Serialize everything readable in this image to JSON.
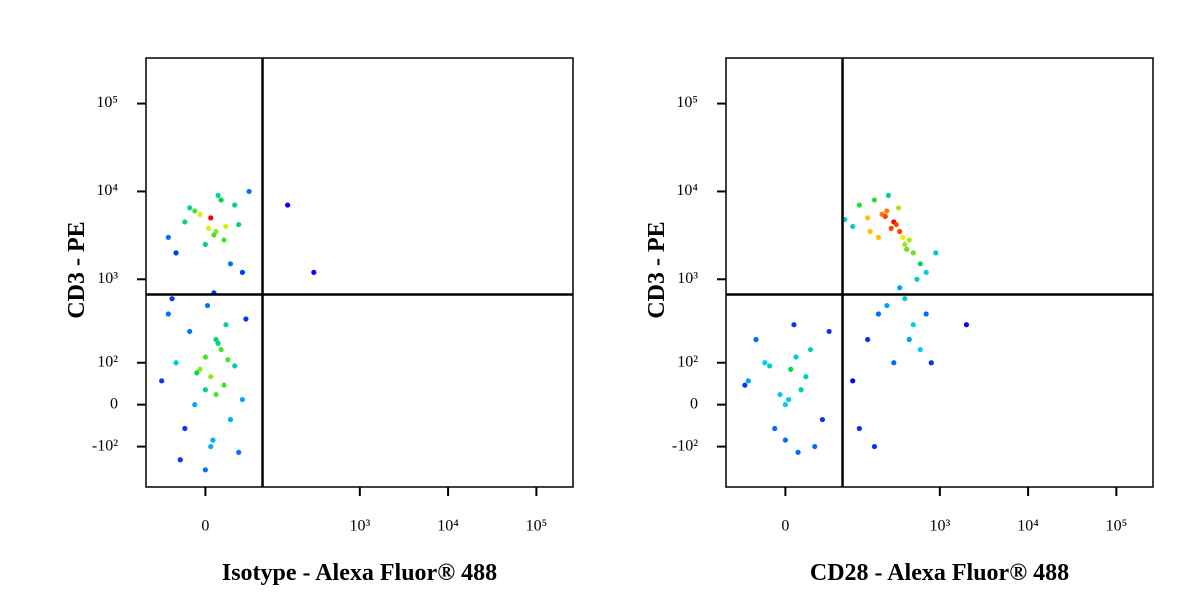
{
  "chart_data": [
    {
      "type": "scatter",
      "x_label": "Isotype - Alexa Fluor® 488",
      "y_label": "CD3 - PE",
      "scale": "biexponential",
      "xlim": [
        -80,
        260000
      ],
      "ylim": [
        -320,
        330000
      ],
      "xticks": [
        0,
        {
          "value": 1000,
          "label": "10³"
        },
        {
          "value": 10000,
          "label": "10⁴"
        },
        {
          "value": 100000,
          "label": "10⁵"
        }
      ],
      "yticks": [
        {
          "value": -100,
          "label": "-10²"
        },
        0,
        {
          "value": 100,
          "label": "10²"
        },
        {
          "value": 1000,
          "label": "10³"
        },
        {
          "value": 10000,
          "label": "10⁴"
        },
        {
          "value": 100000,
          "label": "10⁵"
        }
      ],
      "gate": {
        "x": 75,
        "y": 670
      },
      "x": [
        -40,
        -20,
        -10,
        0,
        5,
        10,
        15,
        20,
        25,
        30,
        -30,
        -5,
        8,
        12,
        35,
        40,
        -15,
        3,
        18,
        50,
        -50,
        -30,
        -20,
        -10,
        -5,
        0,
        0,
        5,
        5,
        10,
        10,
        15,
        20,
        25,
        30,
        40,
        -40,
        -25,
        -15,
        -8,
        2,
        7,
        12,
        18,
        22,
        35,
        45,
        -35,
        0,
        8,
        150,
        300
      ],
      "y": [
        3000,
        4500,
        6000,
        2500,
        5000,
        3500,
        8000,
        4000,
        1500,
        7000,
        2000,
        5500,
        3200,
        9000,
        4200,
        1200,
        6500,
        3800,
        2800,
        10000,
        50,
        100,
        -50,
        0,
        80,
        120,
        30,
        60,
        -100,
        200,
        20,
        150,
        300,
        -30,
        90,
        10,
        400,
        -150,
        250,
        70,
        500,
        -80,
        180,
        40,
        110,
        -120,
        350,
        600,
        -200,
        700,
        7000,
        1200
      ]
    },
    {
      "type": "scatter",
      "x_label": "CD28 - Alexa Fluor® 488",
      "y_label": "CD3 - PE",
      "scale": "biexponential",
      "xlim": [
        -80,
        260000
      ],
      "ylim": [
        -320,
        330000
      ],
      "xticks": [
        0,
        {
          "value": 1000,
          "label": "10³"
        },
        {
          "value": 10000,
          "label": "10⁴"
        },
        {
          "value": 100000,
          "label": "10⁵"
        }
      ],
      "yticks": [
        {
          "value": -100,
          "label": "-10²"
        },
        0,
        {
          "value": 100,
          "label": "10²"
        },
        {
          "value": 1000,
          "label": "10³"
        },
        {
          "value": 10000,
          "label": "10⁴"
        },
        {
          "value": 100000,
          "label": "10⁵"
        }
      ],
      "gate": {
        "x": 75,
        "y": 670
      },
      "x": [
        100,
        150,
        200,
        250,
        300,
        350,
        400,
        500,
        600,
        700,
        120,
        180,
        220,
        280,
        320,
        380,
        450,
        550,
        80,
        260,
        340,
        420,
        160,
        240,
        900,
        -40,
        -20,
        -10,
        0,
        5,
        10,
        15,
        20,
        30,
        -30,
        -5,
        25,
        40,
        -15,
        3,
        12,
        50,
        -45,
        8,
        0,
        100,
        150,
        200,
        300,
        400,
        500,
        600,
        120,
        250,
        350,
        450,
        800,
        2000,
        180,
        700
      ],
      "y": [
        4000,
        5000,
        3000,
        6000,
        4500,
        3500,
        2500,
        2000,
        1500,
        1200,
        7000,
        8000,
        5500,
        3800,
        4200,
        3000,
        2800,
        1000,
        4800,
        9000,
        6500,
        2200,
        3500,
        5200,
        2000,
        50,
        100,
        -50,
        0,
        80,
        120,
        30,
        60,
        -100,
        200,
        20,
        150,
        -30,
        90,
        10,
        -120,
        250,
        40,
        300,
        -80,
        50,
        200,
        400,
        100,
        600,
        300,
        150,
        -50,
        500,
        800,
        200,
        100,
        300,
        -100,
        400
      ]
    }
  ]
}
